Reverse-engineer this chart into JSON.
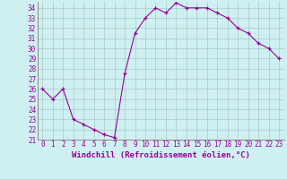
{
  "x": [
    0,
    1,
    2,
    3,
    4,
    5,
    6,
    7,
    8,
    9,
    10,
    11,
    12,
    13,
    14,
    15,
    16,
    17,
    18,
    19,
    20,
    21,
    22,
    23
  ],
  "y": [
    26,
    25,
    26,
    23,
    22.5,
    22,
    21.5,
    21.2,
    27.5,
    31.5,
    33,
    34,
    33.5,
    34.5,
    34,
    34,
    34,
    33.5,
    33,
    32,
    31.5,
    30.5,
    30,
    29
  ],
  "line_color": "#990099",
  "marker": "+",
  "bg_color": "#cff0f0",
  "grid_color": "#aac8c8",
  "xlabel": "Windchill (Refroidissement éolien,°C)",
  "ylim": [
    21,
    34.6
  ],
  "xlim": [
    -0.5,
    23.5
  ],
  "yticks": [
    21,
    22,
    23,
    24,
    25,
    26,
    27,
    28,
    29,
    30,
    31,
    32,
    33,
    34
  ],
  "xticks": [
    0,
    1,
    2,
    3,
    4,
    5,
    6,
    7,
    8,
    9,
    10,
    11,
    12,
    13,
    14,
    15,
    16,
    17,
    18,
    19,
    20,
    21,
    22,
    23
  ],
  "tick_fontsize": 5.5,
  "xlabel_fontsize": 6.5
}
